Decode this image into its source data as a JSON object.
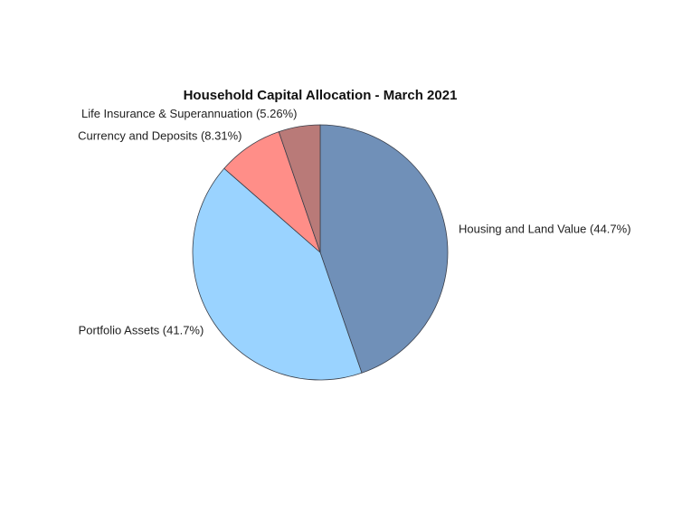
{
  "chart_data": {
    "type": "pie",
    "title": "Household Capital Allocation - March 2021",
    "start": "top",
    "direction": "clockwise",
    "slices": [
      {
        "label": "Housing and Land Value (44.7%)",
        "name": "Housing and Land Value",
        "value": 44.7,
        "color": "#7090b8"
      },
      {
        "label": "Portfolio Assets (41.7%)",
        "name": "Portfolio Assets",
        "value": 41.7,
        "color": "#9ad3ff"
      },
      {
        "label": "Currency and Deposits (8.31%)",
        "name": "Currency and Deposits",
        "value": 8.31,
        "color": "#ff8e88"
      },
      {
        "label": "Life Insurance & Superannuation (5.26%)",
        "name": "Life Insurance & Superannuation",
        "value": 5.26,
        "color": "#b97a78"
      }
    ]
  }
}
